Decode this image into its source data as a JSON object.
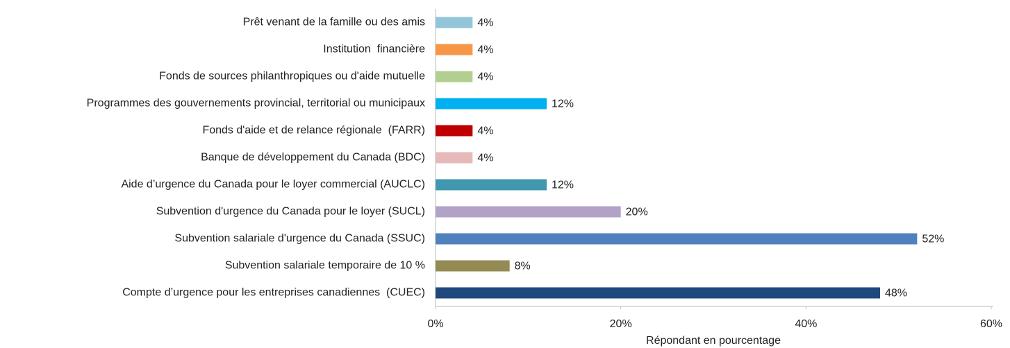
{
  "chart_data": {
    "type": "barh",
    "categories": [
      "Prêt venant de la famille ou des amis",
      "Institution  financière",
      "Fonds de sources philanthropiques ou d'aide mutuelle",
      "Programmes des gouvernements provincial, territorial ou municipaux",
      "Fonds d'aide et de relance régionale  (FARR)",
      "Banque de développement du Canada (BDC)",
      "Aide d’urgence du Canada pour le loyer commercial (AUCLC)",
      "Subvention d'urgence du Canada pour le loyer (SUCL)",
      "Subvention salariale d'urgence du Canada (SSUC)",
      "Subvention salariale temporaire de 10 %",
      "Compte d’urgence pour les entreprises canadiennes  (CUEC)"
    ],
    "values": [
      4,
      4,
      4,
      12,
      4,
      4,
      12,
      20,
      52,
      8,
      48
    ],
    "value_labels": [
      "4%",
      "4%",
      "4%",
      "12%",
      "4%",
      "4%",
      "12%",
      "20%",
      "52%",
      "8%",
      "48%"
    ],
    "colors": [
      "#92c5d8",
      "#f79646",
      "#b3cf8f",
      "#00b0f0",
      "#c00000",
      "#e6b9b8",
      "#4197ae",
      "#b2a2c7",
      "#4f81bd",
      "#948a54",
      "#1f497d"
    ],
    "xlabel": "Répondant en pourcentage",
    "xlim": [
      0,
      60
    ],
    "xticks": [
      {
        "value": 0,
        "label": "0%"
      },
      {
        "value": 20,
        "label": "20%"
      },
      {
        "value": 40,
        "label": "40%"
      },
      {
        "value": 60,
        "label": "60%"
      }
    ]
  }
}
